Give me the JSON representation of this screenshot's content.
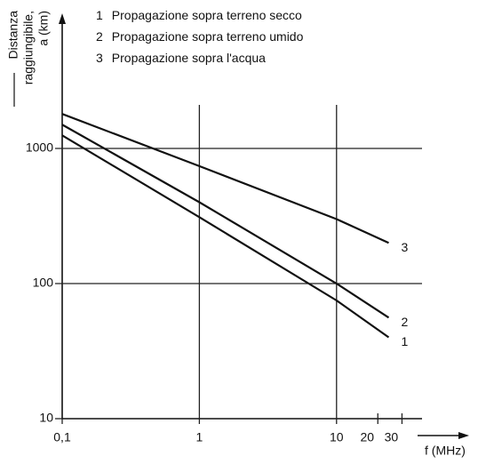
{
  "chart_data": {
    "type": "line",
    "ylabel": [
      "Distanza",
      "raggiungibile,",
      "a (km)"
    ],
    "xlabel": "f (MHz)",
    "x": [
      0.1,
      1,
      10,
      24
    ],
    "series": [
      {
        "name": "Propagazione sopra terreno secco",
        "label": "1",
        "color": "#111111",
        "values": [
          1250,
          310,
          75,
          40
        ]
      },
      {
        "name": "Propagazione sopra terreno umido",
        "label": "2",
        "color": "#111111",
        "values": [
          1500,
          400,
          100,
          56
        ]
      },
      {
        "name": "Propagazione sopra l'acqua",
        "label": "3",
        "color": "#111111",
        "values": [
          1800,
          740,
          300,
          200
        ]
      }
    ],
    "xlim": [
      0.1,
      42
    ],
    "ylim": [
      10,
      10000
    ],
    "xticks": [
      {
        "value": 0.1,
        "label": "0,1"
      },
      1,
      10,
      20,
      30
    ],
    "yticks": [
      10,
      100,
      1000
    ],
    "log_x": true,
    "log_y": true,
    "grid": true
  }
}
